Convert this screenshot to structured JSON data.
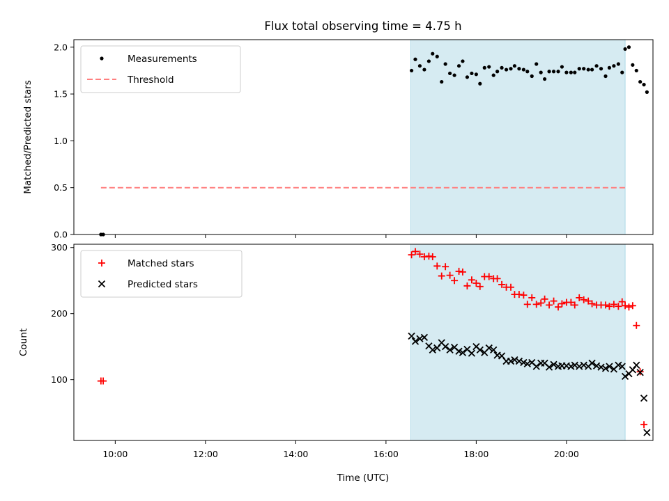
{
  "chart_data": {
    "title": "Flux total observing time = 4.75 h",
    "xlabel": "Time (UTC)",
    "xlim": [
      "09:05",
      "21:55"
    ],
    "x_ticks": [
      "10:00",
      "12:00",
      "14:00",
      "16:00",
      "18:00",
      "20:00"
    ],
    "shaded_span": [
      "16:33",
      "21:18"
    ],
    "colors": {
      "shade": "#add8e6",
      "measurement": "#000000",
      "threshold": "#ff7f7f",
      "matched": "#ff0000",
      "predicted": "#000000"
    },
    "panels": [
      {
        "type": "scatter",
        "ylabel": "Matched/Predicted stars",
        "ylim": [
          0,
          2.08
        ],
        "y_ticks": [
          "0.0",
          "0.5",
          "1.0",
          "1.5",
          "2.0"
        ],
        "legend_position": "upper-left",
        "series": [
          {
            "name": "Measurements",
            "marker": "dot",
            "points": [
              [
                "09:41",
                0.0
              ],
              [
                "09:44",
                0.0
              ],
              [
                "16:34",
                1.75
              ],
              [
                "16:39",
                1.87
              ],
              [
                "16:45",
                1.8
              ],
              [
                "16:51",
                1.76
              ],
              [
                "16:57",
                1.85
              ],
              [
                "17:02",
                1.93
              ],
              [
                "17:08",
                1.9
              ],
              [
                "17:14",
                1.63
              ],
              [
                "17:19",
                1.82
              ],
              [
                "17:25",
                1.72
              ],
              [
                "17:31",
                1.7
              ],
              [
                "17:37",
                1.8
              ],
              [
                "17:42",
                1.85
              ],
              [
                "17:48",
                1.68
              ],
              [
                "17:54",
                1.72
              ],
              [
                "18:00",
                1.71
              ],
              [
                "18:05",
                1.61
              ],
              [
                "18:11",
                1.78
              ],
              [
                "18:17",
                1.79
              ],
              [
                "18:23",
                1.7
              ],
              [
                "18:28",
                1.74
              ],
              [
                "18:34",
                1.78
              ],
              [
                "18:40",
                1.76
              ],
              [
                "18:46",
                1.77
              ],
              [
                "18:51",
                1.8
              ],
              [
                "18:57",
                1.77
              ],
              [
                "19:03",
                1.76
              ],
              [
                "19:08",
                1.74
              ],
              [
                "19:14",
                1.69
              ],
              [
                "19:20",
                1.82
              ],
              [
                "19:26",
                1.73
              ],
              [
                "19:31",
                1.66
              ],
              [
                "19:37",
                1.74
              ],
              [
                "19:43",
                1.74
              ],
              [
                "19:49",
                1.74
              ],
              [
                "19:54",
                1.79
              ],
              [
                "20:00",
                1.73
              ],
              [
                "20:06",
                1.73
              ],
              [
                "20:11",
                1.73
              ],
              [
                "20:17",
                1.77
              ],
              [
                "20:23",
                1.77
              ],
              [
                "20:29",
                1.76
              ],
              [
                "20:34",
                1.76
              ],
              [
                "20:40",
                1.8
              ],
              [
                "20:46",
                1.77
              ],
              [
                "20:52",
                1.69
              ],
              [
                "20:57",
                1.78
              ],
              [
                "21:03",
                1.8
              ],
              [
                "21:09",
                1.82
              ],
              [
                "21:14",
                1.73
              ],
              [
                "21:18",
                1.98
              ],
              [
                "21:23",
                2.0
              ],
              [
                "21:28",
                1.81
              ],
              [
                "21:33",
                1.75
              ],
              [
                "21:38",
                1.63
              ],
              [
                "21:43",
                1.6
              ],
              [
                "21:47",
                1.52
              ]
            ]
          },
          {
            "name": "Threshold",
            "style": "dashed-line",
            "points": [
              [
                "09:41",
                0.5
              ],
              [
                "21:18",
                0.5
              ]
            ]
          }
        ]
      },
      {
        "type": "scatter",
        "ylabel": "Count",
        "ylim": [
          8,
          305
        ],
        "y_ticks": [
          "100",
          "200",
          "300"
        ],
        "legend_position": "upper-left",
        "series": [
          {
            "name": "Matched stars",
            "marker": "plus",
            "points": [
              [
                "09:41",
                98
              ],
              [
                "09:44",
                98
              ],
              [
                "16:34",
                289
              ],
              [
                "16:39",
                294
              ],
              [
                "16:45",
                290
              ],
              [
                "16:51",
                286
              ],
              [
                "16:57",
                287
              ],
              [
                "17:02",
                286
              ],
              [
                "17:08",
                272
              ],
              [
                "17:14",
                257
              ],
              [
                "17:19",
                271
              ],
              [
                "17:25",
                258
              ],
              [
                "17:31",
                250
              ],
              [
                "17:37",
                264
              ],
              [
                "17:42",
                263
              ],
              [
                "17:48",
                242
              ],
              [
                "17:54",
                251
              ],
              [
                "18:00",
                246
              ],
              [
                "18:05",
                241
              ],
              [
                "18:11",
                256
              ],
              [
                "18:17",
                256
              ],
              [
                "18:23",
                253
              ],
              [
                "18:28",
                253
              ],
              [
                "18:34",
                244
              ],
              [
                "18:40",
                240
              ],
              [
                "18:46",
                240
              ],
              [
                "18:51",
                229
              ],
              [
                "18:57",
                229
              ],
              [
                "19:03",
                228
              ],
              [
                "19:08",
                214
              ],
              [
                "19:14",
                224
              ],
              [
                "19:20",
                214
              ],
              [
                "19:26",
                216
              ],
              [
                "19:31",
                222
              ],
              [
                "19:37",
                213
              ],
              [
                "19:43",
                219
              ],
              [
                "19:49",
                210
              ],
              [
                "19:54",
                215
              ],
              [
                "20:00",
                217
              ],
              [
                "20:06",
                217
              ],
              [
                "20:11",
                213
              ],
              [
                "20:17",
                224
              ],
              [
                "20:23",
                221
              ],
              [
                "20:29",
                219
              ],
              [
                "20:34",
                215
              ],
              [
                "20:40",
                213
              ],
              [
                "20:46",
                213
              ],
              [
                "20:52",
                213
              ],
              [
                "20:57",
                211
              ],
              [
                "21:03",
                214
              ],
              [
                "21:09",
                211
              ],
              [
                "21:14",
                218
              ],
              [
                "21:18",
                212
              ],
              [
                "21:23",
                210
              ],
              [
                "21:28",
                212
              ],
              [
                "21:33",
                182
              ],
              [
                "21:38",
                112
              ],
              [
                "21:43",
                32
              ]
            ]
          },
          {
            "name": "Predicted stars",
            "marker": "x",
            "points": [
              [
                "16:34",
                166
              ],
              [
                "16:39",
                158
              ],
              [
                "16:45",
                162
              ],
              [
                "16:51",
                164
              ],
              [
                "16:57",
                151
              ],
              [
                "17:02",
                145
              ],
              [
                "17:08",
                148
              ],
              [
                "17:14",
                156
              ],
              [
                "17:19",
                150
              ],
              [
                "17:25",
                145
              ],
              [
                "17:31",
                149
              ],
              [
                "17:37",
                143
              ],
              [
                "17:42",
                141
              ],
              [
                "17:48",
                146
              ],
              [
                "17:54",
                140
              ],
              [
                "18:00",
                150
              ],
              [
                "18:05",
                145
              ],
              [
                "18:11",
                141
              ],
              [
                "18:17",
                148
              ],
              [
                "18:23",
                145
              ],
              [
                "18:28",
                137
              ],
              [
                "18:34",
                136
              ],
              [
                "18:40",
                128
              ],
              [
                "18:46",
                128
              ],
              [
                "18:51",
                130
              ],
              [
                "18:57",
                128
              ],
              [
                "19:03",
                126
              ],
              [
                "19:08",
                124
              ],
              [
                "19:14",
                126
              ],
              [
                "19:20",
                120
              ],
              [
                "19:26",
                125
              ],
              [
                "19:31",
                125
              ],
              [
                "19:37",
                119
              ],
              [
                "19:43",
                123
              ],
              [
                "19:49",
                120
              ],
              [
                "19:54",
                121
              ],
              [
                "20:00",
                121
              ],
              [
                "20:06",
                120
              ],
              [
                "20:11",
                122
              ],
              [
                "20:17",
                120
              ],
              [
                "20:23",
                122
              ],
              [
                "20:29",
                120
              ],
              [
                "20:34",
                125
              ],
              [
                "20:40",
                121
              ],
              [
                "20:46",
                119
              ],
              [
                "20:52",
                117
              ],
              [
                "20:57",
                120
              ],
              [
                "21:03",
                116
              ],
              [
                "21:09",
                122
              ],
              [
                "21:14",
                120
              ],
              [
                "21:18",
                105
              ],
              [
                "21:23",
                109
              ],
              [
                "21:28",
                115
              ],
              [
                "21:33",
                122
              ],
              [
                "21:38",
                111
              ],
              [
                "21:43",
                72
              ],
              [
                "21:47",
                20
              ]
            ]
          }
        ]
      }
    ]
  }
}
